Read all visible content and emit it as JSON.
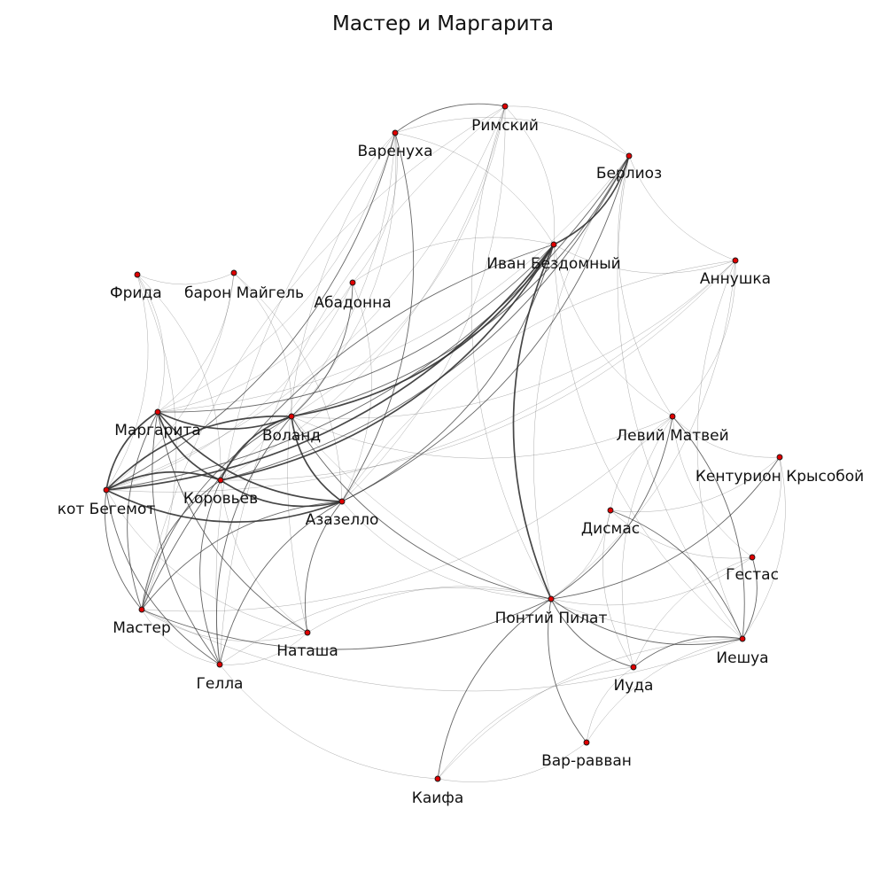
{
  "title": "Мастер и Маргарита",
  "colors": {
    "node_fill": "#e00000",
    "node_stroke": "#1a1a1a",
    "edge": "#333333",
    "background": "#ffffff"
  },
  "chart_data": {
    "type": "network",
    "nodes": [
      {
        "id": "rimsky",
        "label": "Римский"
      },
      {
        "id": "varenukha",
        "label": "Варенуха"
      },
      {
        "id": "berlioz",
        "label": "Берлиоз"
      },
      {
        "id": "ivan",
        "label": "Иван Бездомный"
      },
      {
        "id": "annushka",
        "label": "Аннушка"
      },
      {
        "id": "frida",
        "label": "Фрида"
      },
      {
        "id": "maigel",
        "label": "барон Майгель"
      },
      {
        "id": "abadonna",
        "label": "Абадонна"
      },
      {
        "id": "margarita",
        "label": "Маргарита"
      },
      {
        "id": "woland",
        "label": "Воланд"
      },
      {
        "id": "levi",
        "label": "Левий Матвей"
      },
      {
        "id": "krysoboy",
        "label": "Кентурион Крысобой"
      },
      {
        "id": "behemoth",
        "label": "кот Бегемот"
      },
      {
        "id": "koroviev",
        "label": "Коровьев"
      },
      {
        "id": "azazello",
        "label": "Азазелло"
      },
      {
        "id": "dismas",
        "label": "Дисмас"
      },
      {
        "id": "gestas",
        "label": "Гестас"
      },
      {
        "id": "master",
        "label": "Мастер"
      },
      {
        "id": "pilate",
        "label": "Понтий Пилат"
      },
      {
        "id": "natasha",
        "label": "Наташа"
      },
      {
        "id": "yeshua",
        "label": "Иешуа"
      },
      {
        "id": "gella",
        "label": "Гелла"
      },
      {
        "id": "judas",
        "label": "Иуда"
      },
      {
        "id": "barabbas",
        "label": "Вар-равван"
      },
      {
        "id": "kaifa",
        "label": "Каифа"
      }
    ],
    "edges": [
      {
        "s": "margarita",
        "t": "woland",
        "w": 3
      },
      {
        "s": "margarita",
        "t": "koroviev",
        "w": 3
      },
      {
        "s": "margarita",
        "t": "azazello",
        "w": 3
      },
      {
        "s": "margarita",
        "t": "behemoth",
        "w": 3
      },
      {
        "s": "margarita",
        "t": "master",
        "w": 2
      },
      {
        "s": "margarita",
        "t": "ivan",
        "w": 2
      },
      {
        "s": "margarita",
        "t": "gella",
        "w": 2
      },
      {
        "s": "margarita",
        "t": "natasha",
        "w": 2
      },
      {
        "s": "margarita",
        "t": "frida",
        "w": 1
      },
      {
        "s": "margarita",
        "t": "maigel",
        "w": 1
      },
      {
        "s": "margarita",
        "t": "abadonna",
        "w": 1
      },
      {
        "s": "margarita",
        "t": "berlioz",
        "w": 1
      },
      {
        "s": "margarita",
        "t": "varenukha",
        "w": 1
      },
      {
        "s": "woland",
        "t": "koroviev",
        "w": 3
      },
      {
        "s": "woland",
        "t": "azazello",
        "w": 3
      },
      {
        "s": "woland",
        "t": "behemoth",
        "w": 3
      },
      {
        "s": "woland",
        "t": "ivan",
        "w": 3
      },
      {
        "s": "woland",
        "t": "berlioz",
        "w": 2
      },
      {
        "s": "woland",
        "t": "master",
        "w": 2
      },
      {
        "s": "woland",
        "t": "gella",
        "w": 2
      },
      {
        "s": "woland",
        "t": "pilate",
        "w": 2
      },
      {
        "s": "woland",
        "t": "abadonna",
        "w": 2
      },
      {
        "s": "woland",
        "t": "levi",
        "w": 1
      },
      {
        "s": "woland",
        "t": "annushka",
        "w": 1
      },
      {
        "s": "woland",
        "t": "rimsky",
        "w": 1
      },
      {
        "s": "woland",
        "t": "varenukha",
        "w": 1
      },
      {
        "s": "woland",
        "t": "maigel",
        "w": 1
      },
      {
        "s": "woland",
        "t": "yeshua",
        "w": 1
      },
      {
        "s": "koroviev",
        "t": "behemoth",
        "w": 3
      },
      {
        "s": "koroviev",
        "t": "azazello",
        "w": 3
      },
      {
        "s": "koroviev",
        "t": "ivan",
        "w": 3
      },
      {
        "s": "koroviev",
        "t": "berlioz",
        "w": 2
      },
      {
        "s": "koroviev",
        "t": "master",
        "w": 2
      },
      {
        "s": "koroviev",
        "t": "gella",
        "w": 2
      },
      {
        "s": "koroviev",
        "t": "varenukha",
        "w": 1
      },
      {
        "s": "koroviev",
        "t": "rimsky",
        "w": 1
      },
      {
        "s": "koroviev",
        "t": "annushka",
        "w": 1
      },
      {
        "s": "koroviev",
        "t": "frida",
        "w": 1
      },
      {
        "s": "koroviev",
        "t": "natasha",
        "w": 1
      },
      {
        "s": "behemoth",
        "t": "azazello",
        "w": 3
      },
      {
        "s": "behemoth",
        "t": "ivan",
        "w": 3
      },
      {
        "s": "behemoth",
        "t": "berlioz",
        "w": 2
      },
      {
        "s": "behemoth",
        "t": "master",
        "w": 2
      },
      {
        "s": "behemoth",
        "t": "gella",
        "w": 2
      },
      {
        "s": "behemoth",
        "t": "varenukha",
        "w": 2
      },
      {
        "s": "behemoth",
        "t": "natasha",
        "w": 1
      },
      {
        "s": "behemoth",
        "t": "rimsky",
        "w": 1
      },
      {
        "s": "behemoth",
        "t": "frida",
        "w": 1
      },
      {
        "s": "behemoth",
        "t": "maigel",
        "w": 1
      },
      {
        "s": "behemoth",
        "t": "annushka",
        "w": 1
      },
      {
        "s": "behemoth",
        "t": "abadonna",
        "w": 1
      },
      {
        "s": "azazello",
        "t": "ivan",
        "w": 2
      },
      {
        "s": "azazello",
        "t": "berlioz",
        "w": 2
      },
      {
        "s": "azazello",
        "t": "master",
        "w": 2
      },
      {
        "s": "azazello",
        "t": "gella",
        "w": 2
      },
      {
        "s": "azazello",
        "t": "natasha",
        "w": 2
      },
      {
        "s": "azazello",
        "t": "varenukha",
        "w": 2
      },
      {
        "s": "azazello",
        "t": "pilate",
        "w": 1
      },
      {
        "s": "azazello",
        "t": "abadonna",
        "w": 1
      },
      {
        "s": "azazello",
        "t": "rimsky",
        "w": 1
      },
      {
        "s": "azazello",
        "t": "maigel",
        "w": 1
      },
      {
        "s": "ivan",
        "t": "berlioz",
        "w": 3
      },
      {
        "s": "ivan",
        "t": "pilate",
        "w": 3
      },
      {
        "s": "ivan",
        "t": "master",
        "w": 2
      },
      {
        "s": "ivan",
        "t": "annushka",
        "w": 1
      },
      {
        "s": "ivan",
        "t": "rimsky",
        "w": 1
      },
      {
        "s": "ivan",
        "t": "varenukha",
        "w": 1
      },
      {
        "s": "ivan",
        "t": "levi",
        "w": 1
      },
      {
        "s": "ivan",
        "t": "yeshua",
        "w": 1
      },
      {
        "s": "ivan",
        "t": "abadonna",
        "w": 1
      },
      {
        "s": "berlioz",
        "t": "annushka",
        "w": 1
      },
      {
        "s": "berlioz",
        "t": "rimsky",
        "w": 1
      },
      {
        "s": "berlioz",
        "t": "varenukha",
        "w": 1
      },
      {
        "s": "berlioz",
        "t": "pilate",
        "w": 1
      },
      {
        "s": "berlioz",
        "t": "yeshua",
        "w": 1
      },
      {
        "s": "berlioz",
        "t": "levi",
        "w": 1
      },
      {
        "s": "rimsky",
        "t": "varenukha",
        "w": 2
      },
      {
        "s": "rimsky",
        "t": "gella",
        "w": 1
      },
      {
        "s": "rimsky",
        "t": "pilate",
        "w": 1
      },
      {
        "s": "rimsky",
        "t": "master",
        "w": 1
      },
      {
        "s": "varenukha",
        "t": "gella",
        "w": 1
      },
      {
        "s": "varenukha",
        "t": "natasha",
        "w": 1
      },
      {
        "s": "master",
        "t": "pilate",
        "w": 2
      },
      {
        "s": "master",
        "t": "yeshua",
        "w": 1
      },
      {
        "s": "master",
        "t": "levi",
        "w": 1
      },
      {
        "s": "master",
        "t": "gella",
        "w": 1
      },
      {
        "s": "master",
        "t": "natasha",
        "w": 1
      },
      {
        "s": "master",
        "t": "frida",
        "w": 1
      },
      {
        "s": "pilate",
        "t": "yeshua",
        "w": 2
      },
      {
        "s": "pilate",
        "t": "levi",
        "w": 2
      },
      {
        "s": "pilate",
        "t": "judas",
        "w": 2
      },
      {
        "s": "pilate",
        "t": "kaifa",
        "w": 2
      },
      {
        "s": "pilate",
        "t": "barabbas",
        "w": 2
      },
      {
        "s": "pilate",
        "t": "krysoboy",
        "w": 2
      },
      {
        "s": "pilate",
        "t": "dismas",
        "w": 1
      },
      {
        "s": "pilate",
        "t": "gestas",
        "w": 1
      },
      {
        "s": "pilate",
        "t": "annushka",
        "w": 1
      },
      {
        "s": "pilate",
        "t": "gella",
        "w": 1
      },
      {
        "s": "pilate",
        "t": "natasha",
        "w": 1
      },
      {
        "s": "yeshua",
        "t": "levi",
        "w": 2
      },
      {
        "s": "yeshua",
        "t": "judas",
        "w": 2
      },
      {
        "s": "yeshua",
        "t": "dismas",
        "w": 2
      },
      {
        "s": "yeshua",
        "t": "gestas",
        "w": 2
      },
      {
        "s": "yeshua",
        "t": "krysoboy",
        "w": 1
      },
      {
        "s": "yeshua",
        "t": "kaifa",
        "w": 1
      },
      {
        "s": "yeshua",
        "t": "barabbas",
        "w": 1
      },
      {
        "s": "levi",
        "t": "judas",
        "w": 1
      },
      {
        "s": "levi",
        "t": "dismas",
        "w": 1
      },
      {
        "s": "levi",
        "t": "gestas",
        "w": 1
      },
      {
        "s": "levi",
        "t": "krysoboy",
        "w": 1
      },
      {
        "s": "levi",
        "t": "annushka",
        "w": 1
      },
      {
        "s": "dismas",
        "t": "gestas",
        "w": 1
      },
      {
        "s": "dismas",
        "t": "krysoboy",
        "w": 1
      },
      {
        "s": "dismas",
        "t": "judas",
        "w": 1
      },
      {
        "s": "gestas",
        "t": "krysoboy",
        "w": 1
      },
      {
        "s": "gestas",
        "t": "judas",
        "w": 1
      },
      {
        "s": "judas",
        "t": "kaifa",
        "w": 1
      },
      {
        "s": "judas",
        "t": "barabbas",
        "w": 1
      },
      {
        "s": "kaifa",
        "t": "barabbas",
        "w": 1
      },
      {
        "s": "gella",
        "t": "natasha",
        "w": 1
      },
      {
        "s": "gella",
        "t": "kaifa",
        "w": 1
      },
      {
        "s": "frida",
        "t": "maigel",
        "w": 1
      },
      {
        "s": "annushka",
        "t": "yeshua",
        "w": 1
      },
      {
        "s": "annushka",
        "t": "azazello",
        "w": 1
      },
      {
        "s": "abadonna",
        "t": "varenukha",
        "w": 1
      }
    ]
  }
}
